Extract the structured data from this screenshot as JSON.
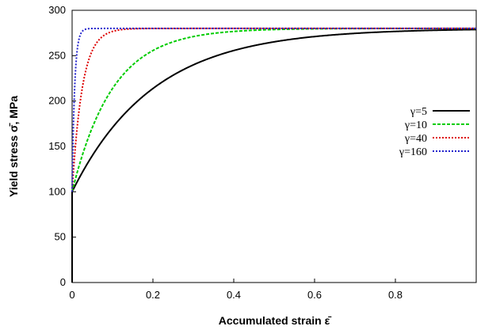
{
  "chart_data": {
    "type": "line",
    "title": "",
    "xlabel": "Accumulated strain ε̄",
    "ylabel": "Yield stress σ̄, MPa",
    "xlim": [
      0,
      1
    ],
    "ylim": [
      0,
      300
    ],
    "xticks": [
      0,
      0.2,
      0.4,
      0.6,
      0.8
    ],
    "xtick_labels": [
      "0",
      "0.2",
      "0.4",
      "0.6",
      "0.8"
    ],
    "yticks": [
      0,
      50,
      100,
      150,
      200,
      250,
      300
    ],
    "ytick_labels": [
      "0",
      "50",
      "100",
      "150",
      "200",
      "250",
      "300"
    ],
    "grid": false,
    "legend_position": "right",
    "model": {
      "initial_stress": 100,
      "saturation_stress": 280
    },
    "series": [
      {
        "name": "γ=5",
        "gamma": 5,
        "color": "#000000",
        "dash": "solid",
        "x": [
          0,
          0.05,
          0.1,
          0.15,
          0.2,
          0.25,
          0.3,
          0.4,
          0.5,
          0.6,
          0.7,
          0.8,
          0.9,
          1.0
        ],
        "y": [
          100,
          140,
          171,
          195,
          214,
          228,
          240,
          256,
          267,
          272,
          275,
          277,
          278,
          279
        ]
      },
      {
        "name": "γ=10",
        "gamma": 10,
        "color": "#00cc00",
        "dash": "dashed",
        "x": [
          0,
          0.025,
          0.05,
          0.1,
          0.15,
          0.2,
          0.25,
          0.3,
          0.4,
          0.5,
          0.6,
          1.0
        ],
        "y": [
          100,
          140,
          171,
          214,
          240,
          256,
          266,
          272,
          277,
          279,
          280,
          280
        ]
      },
      {
        "name": "γ=40",
        "gamma": 40,
        "color": "#dd0000",
        "dash": "dotted",
        "x": [
          0,
          0.01,
          0.02,
          0.03,
          0.05,
          0.075,
          0.1,
          0.15,
          0.2,
          1.0
        ],
        "y": [
          100,
          159,
          199,
          225,
          256,
          271,
          277,
          280,
          280,
          280
        ]
      },
      {
        "name": "γ=160",
        "gamma": 160,
        "color": "#2222cc",
        "dash": "dotted",
        "x": [
          0,
          0.0025,
          0.005,
          0.01,
          0.015,
          0.02,
          0.03,
          0.05,
          1.0
        ],
        "y": [
          100,
          159,
          199,
          244,
          264,
          273,
          279,
          280,
          280
        ]
      }
    ]
  }
}
